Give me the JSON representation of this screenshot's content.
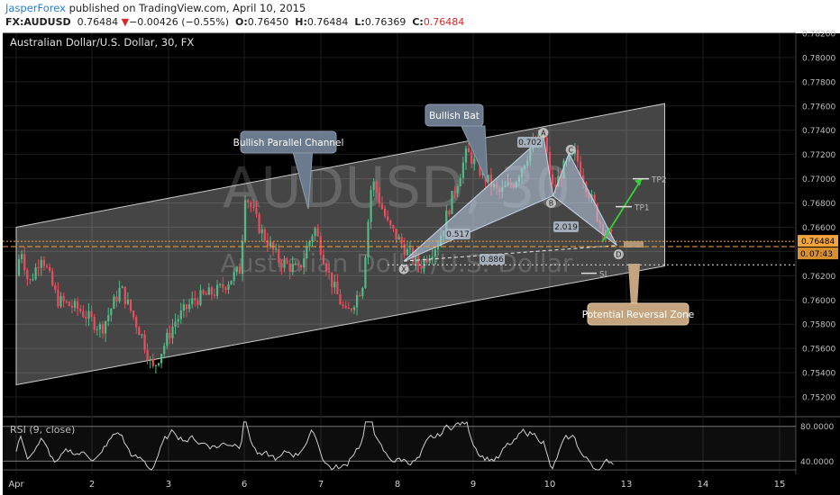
{
  "header": {
    "publisher": "JasperForex",
    "published_text": "published on TradingView.com, April 10, 2015",
    "symbol": "FX:AUDUSD",
    "last": "0.76484",
    "change": "−0.00426 (−0.55%)",
    "o_label": "O:",
    "o_value": "0.76450",
    "h_label": "H:",
    "h_value": "0.76484",
    "l_label": "L:",
    "l_value": "0.76369",
    "c_label": "C:",
    "c_value": "0.76484"
  },
  "chart": {
    "legend": "Australian Dollar/U.S. Dollar, 30, FX",
    "watermark": "AUDUSD, 30",
    "watermark_sub": "Australian Dollar/U.S. Dollar",
    "last_price_tag": "0.76484",
    "countdown_prefix": "0.",
    "countdown": "07:43"
  },
  "annotations": {
    "channel": "Bullish Parallel Channel",
    "bat": "Bullish Bat",
    "prz": "Potential Reversal Zone",
    "points": [
      "X",
      "A",
      "B",
      "C",
      "D"
    ],
    "ratios": [
      "0.702",
      "0.517",
      "2.019",
      "0.886"
    ],
    "tp1": "TP1",
    "tp2": "TP2",
    "sl": "SL"
  },
  "rsi": {
    "label": "RSI (9, close)",
    "ticks": [
      "80.0000",
      "40.0000"
    ]
  },
  "colors": {
    "background": "#000000",
    "up_candle": "#53b987",
    "down_candle": "#eb4d5c",
    "channel_fill": "#ffffff",
    "pattern_fill": "#bcd0e6",
    "orange_line": "#f2a33a",
    "callout": "#6b7a8c",
    "prz_box": "#c4a57f",
    "tp_arrow": "#35d235"
  },
  "chart_data": {
    "type": "candlestick",
    "symbol": "FX:AUDUSD",
    "interval": "30",
    "x_ticks": [
      "Apr",
      "2",
      "3",
      "6",
      "7",
      "8",
      "9",
      "10",
      "13",
      "14",
      "15"
    ],
    "y_ticks": [
      "0.78200",
      "0.78000",
      "0.77800",
      "0.77600",
      "0.77400",
      "0.77200",
      "0.77000",
      "0.76800",
      "0.76600",
      "0.76400",
      "0.76200",
      "0.76000",
      "0.75800",
      "0.75600",
      "0.75400",
      "0.75200"
    ],
    "ylim": [
      0.7508,
      0.7824
    ],
    "close_path": [
      [
        "Apr 1 00:00",
        0.762
      ],
      [
        "Apr 1 01:30",
        0.7644
      ],
      [
        "Apr 1 04:00",
        0.7612
      ],
      [
        "Apr 1 08:00",
        0.7638
      ],
      [
        "Apr 1 13:00",
        0.76
      ],
      [
        "Apr 1 20:00",
        0.7592
      ],
      [
        "Apr 2 03:00",
        0.7576
      ],
      [
        "Apr 2 09:00",
        0.761
      ],
      [
        "Apr 2 16:00",
        0.7568
      ],
      [
        "Apr 2 19:00",
        0.7542
      ],
      [
        "Apr 3 02:00",
        0.7582
      ],
      [
        "Apr 3 08:00",
        0.76
      ],
      [
        "Apr 3 16:00",
        0.7608
      ],
      [
        "Apr 3 23:00",
        0.7626
      ],
      [
        "Apr 6 00:00",
        0.769
      ],
      [
        "Apr 6 05:00",
        0.7658
      ],
      [
        "Apr 6 11:00",
        0.7632
      ],
      [
        "Apr 6 17:00",
        0.7624
      ],
      [
        "Apr 6 22:00",
        0.766
      ],
      [
        "Apr 7 03:00",
        0.7617
      ],
      [
        "Apr 7 08:00",
        0.7587
      ],
      [
        "Apr 7 13:00",
        0.7612
      ],
      [
        "Apr 7 16:00",
        0.77
      ],
      [
        "Apr 7 21:00",
        0.7662
      ],
      [
        "Apr 8 03:00",
        0.764
      ],
      [
        "Apr 8 07:00",
        0.7628
      ],
      [
        "Apr 8 13:00",
        0.7648
      ],
      [
        "Apr 8 18:00",
        0.769
      ],
      [
        "Apr 8 22:00",
        0.7722
      ],
      [
        "Apr 9 04:00",
        0.77
      ],
      [
        "Apr 9 08:00",
        0.7688
      ],
      [
        "Apr 9 13:00",
        0.7698
      ],
      [
        "Apr 9 18:00",
        0.7725
      ],
      [
        "Apr 9 22:00",
        0.7736
      ],
      [
        "Apr 10 01:00",
        0.769
      ],
      [
        "Apr 10 04:00",
        0.7708
      ],
      [
        "Apr 10 08:00",
        0.772
      ],
      [
        "Apr 10 12:00",
        0.769
      ],
      [
        "Apr 10 16:00",
        0.7662
      ],
      [
        "Apr 10 20:00",
        0.7648
      ]
    ],
    "channel": {
      "upper": [
        [
          "Apr 1 00:00",
          0.766
        ],
        [
          "Apr 13 12:00",
          0.7762
        ]
      ],
      "lower": [
        [
          "Apr 1 00:00",
          0.753
        ],
        [
          "Apr 13 12:00",
          0.7628
        ]
      ]
    },
    "bat_pattern": {
      "X": [
        "Apr 8 02:00",
        0.7632
      ],
      "A": [
        "Apr 9 22:00",
        0.7735
      ],
      "B": [
        "Apr 10 01:00",
        0.7686
      ],
      "C": [
        "Apr 10 06:00",
        0.7721
      ],
      "D": [
        "Apr 10 21:00",
        0.7645
      ]
    },
    "levels": {
      "last": 0.76484,
      "prz": 0.7644,
      "tp1": 0.7677,
      "tp2": 0.77,
      "sl": 0.7622
    },
    "rsi": {
      "name": "RSI (9, close)",
      "ylim": [
        28,
        88
      ],
      "levels": [
        80,
        40
      ]
    }
  }
}
